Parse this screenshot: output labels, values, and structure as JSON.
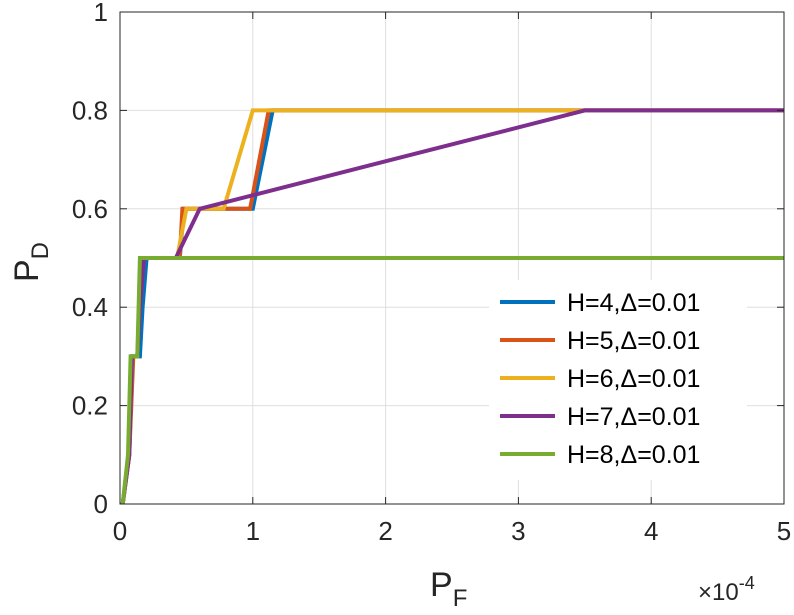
{
  "chart_data": {
    "type": "line",
    "xlabel": {
      "main": "P",
      "sub": "F"
    },
    "ylabel": {
      "main": "P",
      "sub": "D"
    },
    "x_exponent_label": "×10",
    "x_exponent_power": "-4",
    "xlim": [
      0,
      5
    ],
    "ylim": [
      0,
      1
    ],
    "xticks": [
      "0",
      "1",
      "2",
      "3",
      "4",
      "5"
    ],
    "yticks": [
      "0",
      "0.2",
      "0.4",
      "0.6",
      "0.8",
      "1"
    ],
    "grid": true,
    "legend_position": "bottom-right",
    "series": [
      {
        "name": "H=4,Δ=0.01",
        "color": "#0072BD",
        "x": [
          0.02,
          0.07,
          0.09,
          0.11,
          0.13,
          0.15,
          0.17,
          0.2,
          0.23,
          0.45,
          0.48,
          0.5,
          0.65,
          1.0,
          1.15,
          5.0
        ],
        "y": [
          0.0,
          0.1,
          0.3,
          0.3,
          0.3,
          0.3,
          0.4,
          0.5,
          0.5,
          0.5,
          0.6,
          0.6,
          0.6,
          0.6,
          0.8,
          0.8
        ]
      },
      {
        "name": "H=5,Δ=0.01",
        "color": "#D95319",
        "x": [
          0.02,
          0.07,
          0.1,
          0.13,
          0.15,
          0.18,
          0.2,
          0.45,
          0.47,
          0.52,
          0.7,
          0.98,
          1.12,
          5.0
        ],
        "y": [
          0.0,
          0.1,
          0.3,
          0.3,
          0.4,
          0.5,
          0.5,
          0.5,
          0.6,
          0.6,
          0.6,
          0.6,
          0.8,
          0.8
        ]
      },
      {
        "name": "H=6,Δ=0.01",
        "color": "#EDB120",
        "x": [
          0.02,
          0.07,
          0.09,
          0.13,
          0.15,
          0.17,
          0.2,
          0.43,
          0.5,
          0.78,
          1.0,
          3.5,
          5.0
        ],
        "y": [
          0.0,
          0.1,
          0.3,
          0.3,
          0.45,
          0.5,
          0.5,
          0.5,
          0.6,
          0.6,
          0.8,
          0.8,
          0.8
        ]
      },
      {
        "name": "H=7,Δ=0.01",
        "color": "#7E2F8E",
        "x": [
          0.02,
          0.07,
          0.09,
          0.13,
          0.15,
          0.18,
          0.2,
          0.42,
          0.6,
          3.5,
          5.0
        ],
        "y": [
          0.0,
          0.1,
          0.3,
          0.3,
          0.4,
          0.5,
          0.5,
          0.5,
          0.6,
          0.8,
          0.8
        ]
      },
      {
        "name": "H=8,Δ=0.01",
        "color": "#77AC30",
        "x": [
          0.02,
          0.06,
          0.08,
          0.13,
          0.14,
          0.15,
          5.0
        ],
        "y": [
          0.0,
          0.1,
          0.3,
          0.3,
          0.4,
          0.5,
          0.5
        ]
      }
    ]
  }
}
